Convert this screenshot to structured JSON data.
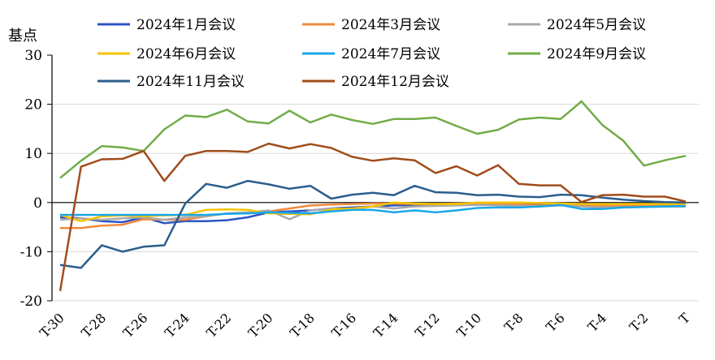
{
  "chart_data": {
    "type": "line",
    "ylabel": "基点",
    "ylim": [
      -20,
      30
    ],
    "yticks": [
      30,
      20,
      10,
      0,
      -10,
      -20
    ],
    "grid": true,
    "legend_position": "top",
    "x": [
      "T-30",
      "T-29",
      "T-28",
      "T-27",
      "T-26",
      "T-25",
      "T-24",
      "T-23",
      "T-22",
      "T-21",
      "T-20",
      "T-19",
      "T-18",
      "T-17",
      "T-16",
      "T-15",
      "T-14",
      "T-13",
      "T-12",
      "T-11",
      "T-10",
      "T-9",
      "T-8",
      "T-7",
      "T-6",
      "T-5",
      "T-4",
      "T-3",
      "T-2",
      "T-1",
      "T"
    ],
    "xticklabels": [
      "T-30",
      "T-28",
      "T-26",
      "T-24",
      "T-22",
      "T-20",
      "T-18",
      "T-16",
      "T-14",
      "T-12",
      "T-10",
      "T-8",
      "T-6",
      "T-4",
      "T-2",
      "T"
    ],
    "series": [
      {
        "name": "2024年1月会议",
        "color": "#2c54c4",
        "values": [
          -3,
          -3.2,
          -3.8,
          -4,
          -3,
          -4.2,
          -3.8,
          -3.8,
          -3.6,
          -3,
          -2,
          -1.8,
          -1.6,
          -1.2,
          -1,
          -0.8,
          -0.6,
          -0.5,
          -0.4,
          -0.3,
          -0.2,
          -0.2,
          -0.3,
          -0.3,
          -0.2,
          -0.3,
          -0.5,
          -0.7,
          -0.7,
          -0.8,
          -0.8
        ]
      },
      {
        "name": "2024年3月会议",
        "color": "#f08a3c",
        "values": [
          -5.2,
          -5.2,
          -4.7,
          -4.5,
          -3.4,
          -3.5,
          -3.5,
          -2.8,
          -2.2,
          -2.2,
          -1.8,
          -1.2,
          -0.6,
          -0.4,
          -0.3,
          -0.2,
          -0.2,
          -0.3,
          -0.3,
          -0.2,
          -0.2,
          -0.3,
          -0.4,
          -0.6,
          -0.3,
          -0.5,
          -0.7,
          -0.6,
          -0.6,
          -0.5,
          -0.5
        ]
      },
      {
        "name": "2024年5月会议",
        "color": "#a9a9a9",
        "values": [
          -3.5,
          -3.2,
          -3.5,
          -3.2,
          -3,
          -3.5,
          -3,
          -2.8,
          -2.2,
          -2,
          -1.6,
          -3.4,
          -1.6,
          -1.2,
          -1.4,
          -0.8,
          -1.2,
          -0.8,
          -0.7,
          -0.6,
          -0.5,
          -0.6,
          -0.7,
          -0.8,
          -0.6,
          -0.8,
          -1,
          -1,
          -0.9,
          -0.8,
          -0.8
        ]
      },
      {
        "name": "2024年6月会议",
        "color": "#f5c400",
        "values": [
          -2.5,
          -3.8,
          -2.8,
          -2.6,
          -2.8,
          -2.6,
          -2.5,
          -1.5,
          -1.4,
          -1.5,
          -2.2,
          -2.3,
          -2.4,
          -1.4,
          -1.2,
          -0.8,
          0,
          -0.2,
          -0.3,
          -0.3,
          0,
          0,
          0,
          -0.1,
          -0.2,
          -0.3,
          -0.3,
          -0.3,
          -0.3,
          -0.3,
          -0.3
        ]
      },
      {
        "name": "2024年7月会议",
        "color": "#1aa7e8",
        "values": [
          -2.5,
          -2.5,
          -2.5,
          -2.5,
          -2.5,
          -2.5,
          -2.5,
          -2.5,
          -2.3,
          -2.2,
          -2,
          -2.1,
          -2.2,
          -1.8,
          -1.5,
          -1.5,
          -2,
          -1.6,
          -2,
          -1.6,
          -1.1,
          -1,
          -1,
          -0.8,
          -0.5,
          -1.3,
          -1.3,
          -1,
          -0.9,
          -0.8,
          -0.7
        ]
      },
      {
        "name": "2024年9月会议",
        "color": "#72ac48",
        "values": [
          5,
          8.5,
          11.5,
          11.2,
          10.5,
          14.9,
          17.7,
          17.4,
          18.9,
          16.5,
          16.1,
          18.7,
          16.3,
          17.9,
          16.8,
          16,
          17,
          17,
          17.3,
          15.6,
          14,
          14.8,
          16.9,
          17.3,
          17,
          20.6,
          15.8,
          12.6,
          7.5,
          8.6,
          9.5
        ]
      },
      {
        "name": "2024年11月会议",
        "color": "#2b5d8d",
        "values": [
          -12.7,
          -13.3,
          -8.7,
          -10,
          -9,
          -8.7,
          -0.2,
          3.8,
          3,
          4.4,
          3.7,
          2.8,
          3.4,
          0.8,
          1.6,
          2,
          1.5,
          3.4,
          2.1,
          2,
          1.5,
          1.6,
          1.2,
          1.1,
          1.6,
          1.5,
          1,
          0.6,
          0.3,
          0.1,
          0
        ]
      },
      {
        "name": "2024年12月会议",
        "color": "#a04c1b",
        "values": [
          -18,
          7.3,
          8.8,
          8.9,
          10.5,
          4.4,
          9.5,
          10.5,
          10.5,
          10.3,
          12,
          11,
          11.9,
          11.1,
          9.3,
          8.5,
          9,
          8.6,
          6,
          7.4,
          5.5,
          7.6,
          3.8,
          3.5,
          3.5,
          0.1,
          1.5,
          1.6,
          1.2,
          1.2,
          0.2
        ]
      }
    ]
  }
}
